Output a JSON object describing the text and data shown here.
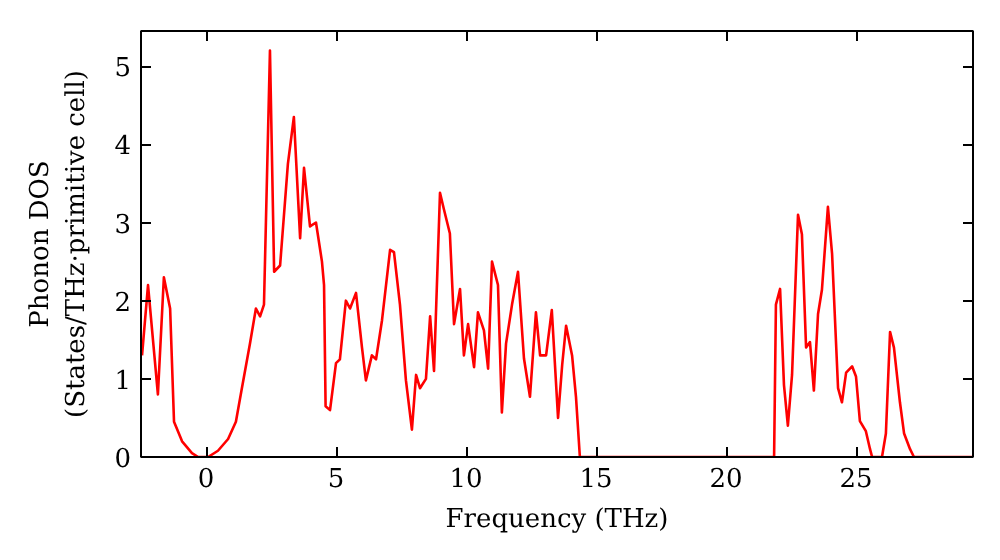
{
  "chart_data": {
    "type": "line",
    "xlabel": "Frequency (THz)",
    "ylabel": "Phonon DOS\n(States/THz·primitive cell)",
    "xlim": [
      -2.5,
      29.5
    ],
    "ylim": [
      0,
      5.45
    ],
    "xticks": [
      0,
      5,
      10,
      15,
      20,
      25
    ],
    "yticks": [
      0,
      1,
      2,
      3,
      4,
      5
    ],
    "grid": false,
    "marker": "none",
    "line_style": "solid",
    "series": [
      {
        "color": "#ff0000",
        "x": [
          -2.46,
          -2.23,
          -1.85,
          -1.62,
          -1.38,
          -1.23,
          -0.92,
          -0.54,
          -0.3,
          0.08,
          0.46,
          0.85,
          1.15,
          1.38,
          1.69,
          1.92,
          2.08,
          2.23,
          2.46,
          2.62,
          2.85,
          3.15,
          3.38,
          3.62,
          3.77,
          4.0,
          4.23,
          4.46,
          4.54,
          4.6,
          4.77,
          5.0,
          5.15,
          5.38,
          5.54,
          5.77,
          6.0,
          6.15,
          6.38,
          6.54,
          6.77,
          7.08,
          7.23,
          7.46,
          7.69,
          7.92,
          8.08,
          8.23,
          8.46,
          8.62,
          8.77,
          9.0,
          9.15,
          9.38,
          9.54,
          9.77,
          9.92,
          10.08,
          10.31,
          10.46,
          10.69,
          10.85,
          11.0,
          11.23,
          11.38,
          11.54,
          11.77,
          12.0,
          12.23,
          12.46,
          12.69,
          12.85,
          13.08,
          13.3,
          13.54,
          13.7,
          13.85,
          14.08,
          14.23,
          14.38,
          21.85,
          21.92,
          22.08,
          22.23,
          22.38,
          22.54,
          22.77,
          22.92,
          23.08,
          23.23,
          23.38,
          23.54,
          23.69,
          23.92,
          24.08,
          24.31,
          24.46,
          24.62,
          24.85,
          25.0,
          25.15,
          25.38,
          25.54,
          25.62,
          26.0,
          26.15,
          26.31,
          26.46,
          26.69,
          26.85,
          27.08,
          27.23,
          29.5
        ],
        "values": [
          1.3,
          2.2,
          0.8,
          2.3,
          1.9,
          0.45,
          0.2,
          0.05,
          0,
          0,
          0.08,
          0.23,
          0.45,
          0.88,
          1.45,
          1.9,
          1.8,
          1.95,
          5.2,
          2.37,
          2.45,
          3.75,
          4.35,
          2.8,
          3.7,
          2.95,
          3.0,
          2.5,
          2.2,
          0.65,
          0.6,
          1.2,
          1.25,
          2.0,
          1.9,
          2.1,
          1.4,
          0.98,
          1.3,
          1.25,
          1.75,
          2.65,
          2.62,
          1.95,
          0.98,
          0.35,
          1.05,
          0.88,
          1.0,
          1.8,
          1.1,
          3.38,
          3.17,
          2.86,
          1.7,
          2.15,
          1.3,
          1.7,
          1.15,
          1.85,
          1.62,
          1.13,
          2.5,
          2.2,
          0.57,
          1.45,
          1.95,
          2.37,
          1.26,
          0.77,
          1.85,
          1.3,
          1.3,
          1.88,
          0.5,
          1.18,
          1.68,
          1.3,
          0.77,
          0,
          0,
          1.95,
          2.15,
          0.92,
          0.4,
          1.05,
          3.1,
          2.85,
          1.4,
          1.47,
          0.85,
          1.83,
          2.14,
          3.2,
          2.6,
          0.88,
          0.7,
          1.08,
          1.16,
          1.03,
          0.46,
          0.33,
          0.1,
          0,
          0,
          0.3,
          1.6,
          1.4,
          0.7,
          0.3,
          0.1,
          0,
          0
        ]
      }
    ]
  }
}
